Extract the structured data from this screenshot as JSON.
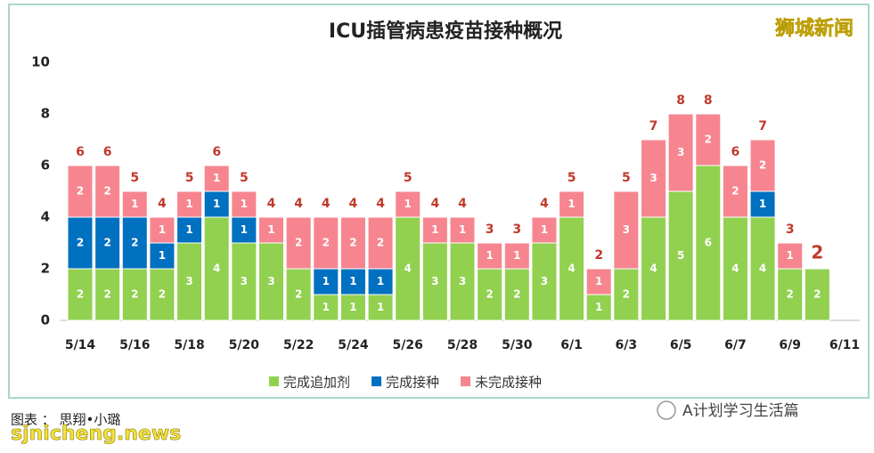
{
  "chart_data": {
    "type": "stacked-bar",
    "title": "ICU插管病患疫苗接种概况",
    "categories": [
      "5/14",
      null,
      "5/16",
      null,
      "5/18",
      null,
      "5/20",
      null,
      "5/22",
      null,
      "5/24",
      null,
      "5/26",
      null,
      "5/28",
      null,
      "5/30",
      null,
      "6/1",
      null,
      "6/3",
      null,
      "6/5",
      null,
      "6/7",
      null,
      "6/9",
      null,
      "6/11"
    ],
    "series": [
      {
        "name": "完成追加剂",
        "color": "#92d050",
        "values": [
          2,
          2,
          2,
          2,
          3,
          4,
          3,
          3,
          2,
          1,
          1,
          1,
          4,
          3,
          3,
          2,
          2,
          3,
          4,
          1,
          2,
          4,
          5,
          6,
          4,
          4,
          2,
          2,
          null
        ]
      },
      {
        "name": "完成接种",
        "color": "#0070c0",
        "values": [
          2,
          2,
          2,
          1,
          1,
          1,
          1,
          0,
          0,
          1,
          1,
          1,
          0,
          0,
          0,
          0,
          0,
          0,
          0,
          0,
          0,
          0,
          0,
          0,
          0,
          1,
          0,
          0,
          null
        ]
      },
      {
        "name": "未完成接种",
        "color": "#f6858f",
        "values": [
          2,
          2,
          1,
          1,
          1,
          1,
          1,
          1,
          2,
          2,
          2,
          2,
          1,
          1,
          1,
          1,
          1,
          1,
          1,
          1,
          3,
          3,
          3,
          2,
          2,
          2,
          1,
          0,
          null
        ]
      }
    ],
    "totals": [
      6,
      6,
      5,
      4,
      5,
      6,
      5,
      4,
      4,
      4,
      4,
      4,
      5,
      4,
      4,
      3,
      3,
      4,
      5,
      2,
      5,
      7,
      8,
      8,
      6,
      7,
      3,
      2,
      null
    ],
    "ylim": [
      0,
      10
    ],
    "yticks": [
      0,
      2,
      4,
      6,
      8,
      10
    ],
    "grid": false,
    "legend": "bottom",
    "watermark": "狮城新闻"
  },
  "footer": {
    "credit": "图表 ： 思翔•小璐",
    "site": "sjnicheng.news",
    "account": "A计划学习生活篇"
  }
}
